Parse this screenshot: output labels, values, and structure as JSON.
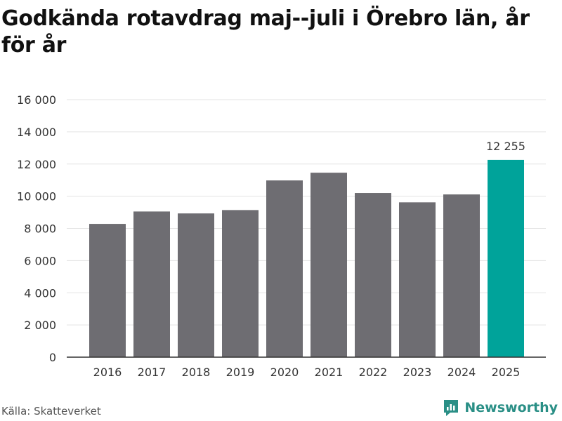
{
  "title": "Godkända rotavdrag maj--juli i Örebro län, år för år",
  "source": "Källa: Skatteverket",
  "brand": {
    "name": "Newsworthy",
    "icon": "newsworthy-logo-icon",
    "color": "#2a8f86"
  },
  "colors": {
    "bar": "#6e6d72",
    "highlight": "#00a39a",
    "grid": "#e3e3e3",
    "axis": "#333333"
  },
  "chart_data": {
    "type": "bar",
    "categories": [
      "2016",
      "2017",
      "2018",
      "2019",
      "2020",
      "2021",
      "2022",
      "2023",
      "2024",
      "2025"
    ],
    "values": [
      8280,
      9050,
      8930,
      9140,
      10980,
      11460,
      10200,
      9620,
      10110,
      12255
    ],
    "highlight_index": 9,
    "data_labels": [
      {
        "index": 9,
        "text": "12 255"
      }
    ],
    "y_ticks": [
      0,
      2000,
      4000,
      6000,
      8000,
      10000,
      12000,
      14000,
      16000
    ],
    "y_tick_labels": [
      "0",
      "2 000",
      "4 000",
      "6 000",
      "8 000",
      "10 000",
      "12 000",
      "14 000",
      "16 000"
    ],
    "ylim": [
      0,
      16000
    ],
    "xlabel": "",
    "ylabel": "",
    "grid": true,
    "legend": "none"
  }
}
